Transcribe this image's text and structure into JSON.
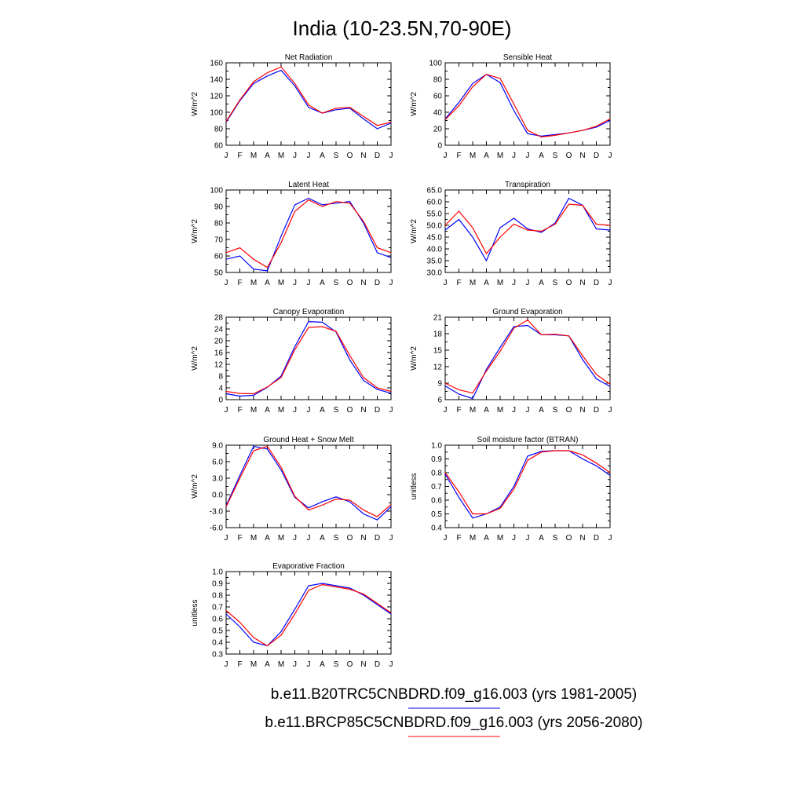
{
  "figure_title": "India (10-23.5N,70-90E)",
  "series_colors": [
    "#0000ff",
    "#ff0000"
  ],
  "legend": [
    {
      "label": "b.e11.B20TRC5CNBDRD.f09_g16.003 (yrs 1981-2005)",
      "color": "#0000ff"
    },
    {
      "label": "b.e11.BRCP85C5CNBDRD.f09_g16.003 (yrs 2056-2080)",
      "color": "#ff0000"
    }
  ],
  "chart_data": [
    {
      "type": "line",
      "title": "Net Radiation",
      "ylabel": "W/m^2",
      "categories": [
        "J",
        "F",
        "M",
        "A",
        "M",
        "J",
        "J",
        "A",
        "S",
        "O",
        "N",
        "D",
        "J"
      ],
      "ylim": [
        60,
        160
      ],
      "yticks": [
        "60",
        "80",
        "100",
        "120",
        "140",
        "160"
      ],
      "series": [
        {
          "values": [
            88,
            114,
            135,
            144,
            151,
            132,
            106,
            99,
            103,
            105,
            92,
            80,
            87
          ]
        },
        {
          "values": [
            89,
            115,
            137,
            148,
            155,
            135,
            109,
            99,
            105,
            106,
            95,
            84,
            88
          ]
        }
      ]
    },
    {
      "type": "line",
      "title": "Sensible Heat",
      "ylabel": "W/m^2",
      "categories": [
        "J",
        "F",
        "M",
        "A",
        "M",
        "J",
        "J",
        "A",
        "S",
        "O",
        "N",
        "D",
        "J"
      ],
      "ylim": [
        0,
        100
      ],
      "yticks": [
        "0",
        "20",
        "40",
        "60",
        "80",
        "100"
      ],
      "series": [
        {
          "values": [
            32,
            52,
            75,
            86,
            76,
            42,
            14,
            11,
            13,
            15,
            18,
            22,
            30
          ]
        },
        {
          "values": [
            31,
            48,
            71,
            86,
            81,
            50,
            18,
            10,
            12,
            15,
            18,
            23,
            32
          ]
        }
      ]
    },
    {
      "type": "line",
      "title": "Latent Heat",
      "ylabel": "W/m^2",
      "categories": [
        "J",
        "F",
        "M",
        "A",
        "M",
        "J",
        "J",
        "A",
        "S",
        "O",
        "N",
        "D",
        "J"
      ],
      "ylim": [
        50,
        100
      ],
      "yticks": [
        "50",
        "60",
        "70",
        "80",
        "90",
        "100"
      ],
      "series": [
        {
          "values": [
            58,
            60,
            52,
            51,
            72,
            91,
            95,
            91,
            92,
            93,
            80,
            62,
            59
          ]
        },
        {
          "values": [
            62,
            65,
            58,
            53,
            68,
            87,
            94,
            90,
            93,
            92,
            81,
            65,
            62
          ]
        }
      ]
    },
    {
      "type": "line",
      "title": "Transpiration",
      "ylabel": "W/m^2",
      "categories": [
        "J",
        "F",
        "M",
        "A",
        "M",
        "J",
        "J",
        "A",
        "S",
        "O",
        "N",
        "D",
        "J"
      ],
      "ylim": [
        30,
        65
      ],
      "yticks": [
        "30.0",
        "35.0",
        "40.0",
        "45.0",
        "50.0",
        "55.0",
        "60.0",
        "65.0"
      ],
      "series": [
        {
          "values": [
            48,
            52.5,
            45,
            35,
            49,
            53,
            48.5,
            47,
            51,
            61.5,
            58.5,
            48.5,
            48
          ]
        },
        {
          "values": [
            50,
            56,
            49,
            38,
            45,
            50.5,
            48,
            47.5,
            50.5,
            59,
            58.5,
            50.5,
            50
          ]
        }
      ]
    },
    {
      "type": "line",
      "title": "Canopy Evaporation",
      "ylabel": "W/m^2",
      "categories": [
        "J",
        "F",
        "M",
        "A",
        "M",
        "J",
        "J",
        "A",
        "S",
        "O",
        "N",
        "D",
        "J"
      ],
      "ylim": [
        0,
        28
      ],
      "yticks": [
        "0",
        "4",
        "8",
        "12",
        "16",
        "20",
        "24",
        "28"
      ],
      "series": [
        {
          "values": [
            2,
            1.2,
            1.5,
            4.2,
            8,
            18,
            26.5,
            26.3,
            23,
            13.5,
            6.5,
            3.5,
            2.2
          ]
        },
        {
          "values": [
            2.8,
            2.1,
            2,
            4.3,
            7.5,
            17,
            24.5,
            24.8,
            23.2,
            15,
            7.5,
            4,
            2.8
          ]
        }
      ]
    },
    {
      "type": "line",
      "title": "Ground Evaporation",
      "ylabel": "W/m^2",
      "categories": [
        "J",
        "F",
        "M",
        "A",
        "M",
        "J",
        "J",
        "A",
        "S",
        "O",
        "N",
        "D",
        "J"
      ],
      "ylim": [
        6,
        21
      ],
      "yticks": [
        "6",
        "9",
        "12",
        "15",
        "18",
        "21"
      ],
      "series": [
        {
          "values": [
            8.5,
            7,
            6.2,
            11.5,
            15.5,
            19.3,
            19.5,
            17.8,
            17.8,
            17.6,
            13.3,
            9.8,
            8.4
          ]
        },
        {
          "values": [
            9,
            7.8,
            7.2,
            11.2,
            14.8,
            19,
            20.5,
            17.8,
            17.9,
            17.6,
            14,
            10.6,
            8.8
          ]
        }
      ]
    },
    {
      "type": "line",
      "title": "Ground Heat + Snow Melt",
      "ylabel": "W/m^2",
      "categories": [
        "J",
        "F",
        "M",
        "A",
        "M",
        "J",
        "J",
        "A",
        "S",
        "O",
        "N",
        "D",
        "J"
      ],
      "ylim": [
        -6,
        9
      ],
      "yticks": [
        "-6.0",
        "-3.0",
        "0.0",
        "3.0",
        "6.0",
        "9.0"
      ],
      "series": [
        {
          "values": [
            -2,
            3.5,
            8.8,
            8.3,
            4.5,
            -0.5,
            -2.4,
            -1.3,
            -0.4,
            -1.3,
            -3.5,
            -4.6,
            -2.2
          ]
        },
        {
          "values": [
            -2.2,
            3,
            8,
            8.8,
            5,
            -0.3,
            -2.8,
            -1.9,
            -0.8,
            -1,
            -2.8,
            -4,
            -1.8
          ]
        }
      ]
    },
    {
      "type": "line",
      "title": "Soil moisture factor (BTRAN)",
      "ylabel": "unitless",
      "categories": [
        "J",
        "F",
        "M",
        "A",
        "M",
        "J",
        "J",
        "A",
        "S",
        "O",
        "N",
        "D",
        "J"
      ],
      "ylim": [
        0.4,
        1.0
      ],
      "yticks": [
        "0.4",
        "0.5",
        "0.6",
        "0.7",
        "0.8",
        "0.9",
        "1.0"
      ],
      "series": [
        {
          "values": [
            0.79,
            0.62,
            0.47,
            0.5,
            0.55,
            0.7,
            0.92,
            0.955,
            0.96,
            0.96,
            0.9,
            0.85,
            0.78
          ]
        },
        {
          "values": [
            0.8,
            0.66,
            0.5,
            0.5,
            0.54,
            0.68,
            0.89,
            0.95,
            0.96,
            0.96,
            0.93,
            0.87,
            0.8
          ]
        }
      ]
    },
    {
      "type": "line",
      "title": "Evaporative Fraction",
      "ylabel": "unitless",
      "categories": [
        "J",
        "F",
        "M",
        "A",
        "M",
        "J",
        "J",
        "A",
        "S",
        "O",
        "N",
        "D",
        "J"
      ],
      "ylim": [
        0.3,
        1.0
      ],
      "yticks": [
        "0.3",
        "0.4",
        "0.5",
        "0.6",
        "0.7",
        "0.8",
        "0.9",
        "1.0"
      ],
      "series": [
        {
          "values": [
            0.64,
            0.53,
            0.4,
            0.37,
            0.49,
            0.68,
            0.88,
            0.9,
            0.88,
            0.86,
            0.8,
            0.72,
            0.64
          ]
        },
        {
          "values": [
            0.67,
            0.57,
            0.44,
            0.37,
            0.46,
            0.64,
            0.84,
            0.89,
            0.87,
            0.85,
            0.81,
            0.73,
            0.65
          ]
        }
      ]
    }
  ]
}
